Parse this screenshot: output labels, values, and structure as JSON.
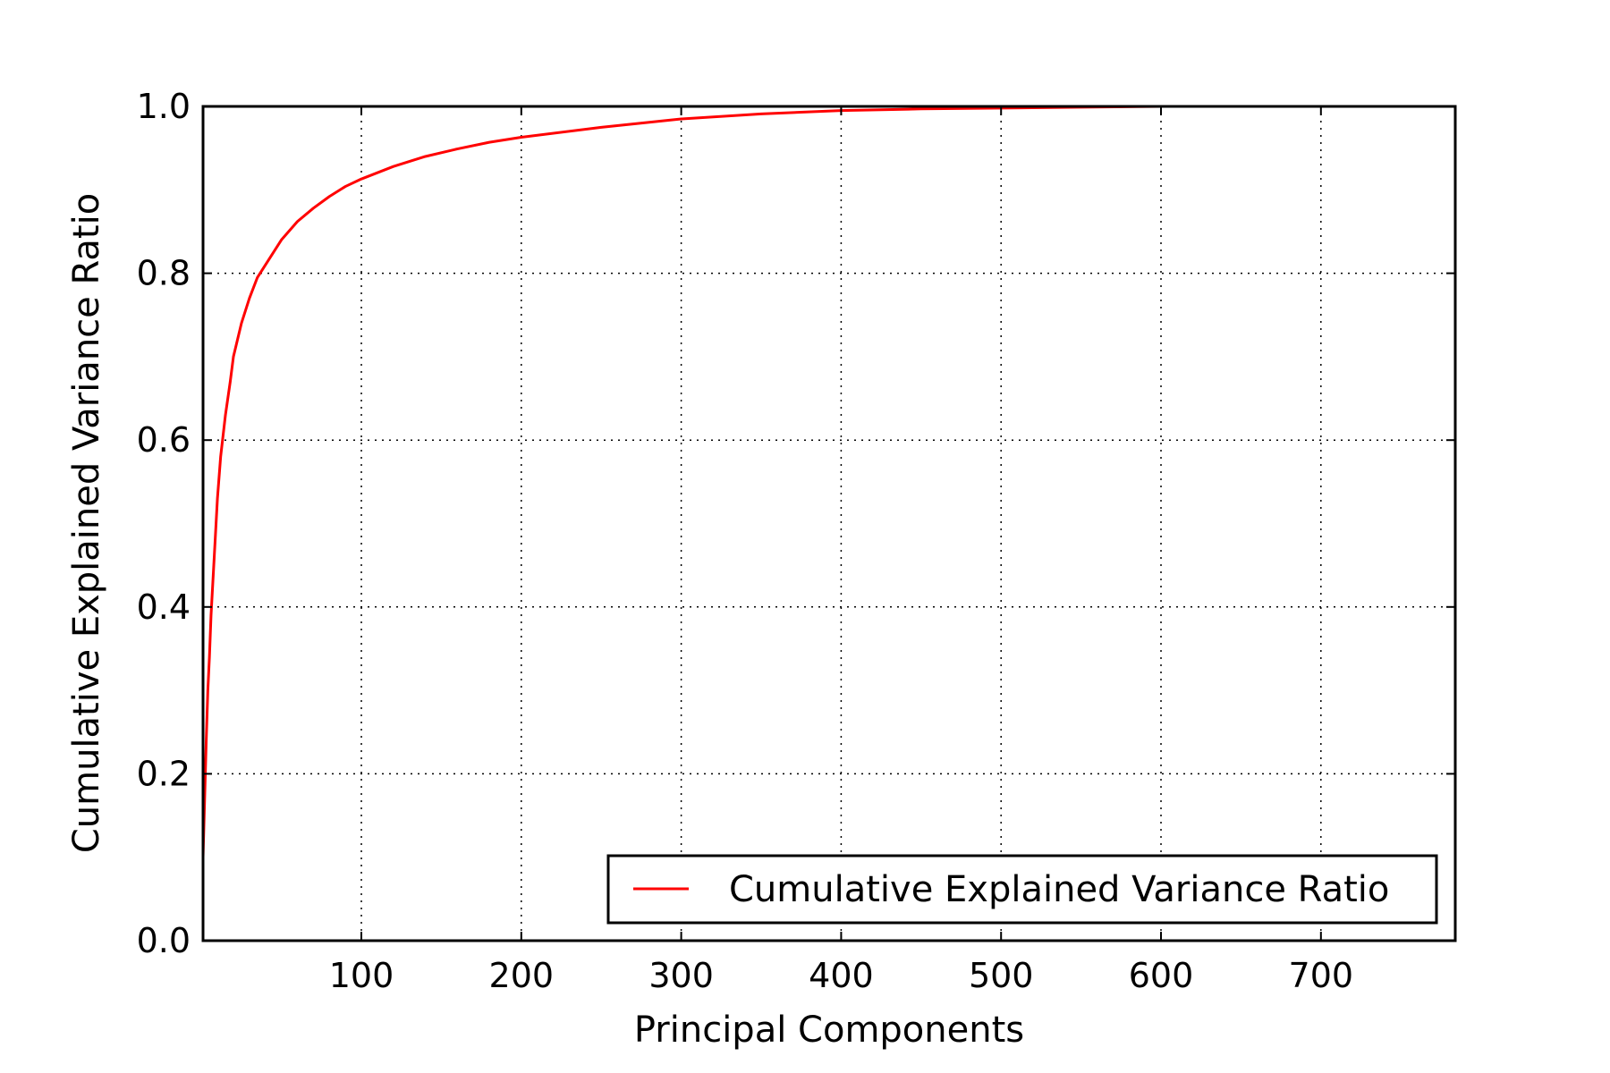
{
  "chart_data": {
    "type": "line",
    "title": "",
    "xlabel": "Principal Components",
    "ylabel": "Cumulative Explained Variance Ratio",
    "xlim": [
      1,
      784
    ],
    "ylim": [
      0.0,
      1.0
    ],
    "x_ticks": [
      100,
      200,
      300,
      400,
      500,
      600,
      700
    ],
    "x_tick_labels": [
      "100",
      "200",
      "300",
      "400",
      "500",
      "600",
      "700"
    ],
    "y_ticks": [
      0.0,
      0.2,
      0.4,
      0.6,
      0.8,
      1.0
    ],
    "y_tick_labels": [
      "0.0",
      "0.2",
      "0.4",
      "0.6",
      "0.8",
      "1.0"
    ],
    "grid": true,
    "legend_position": "lower-right",
    "series": [
      {
        "name": "Cumulative Explained Variance Ratio",
        "color": "#ff0000",
        "x": [
          1,
          2,
          3,
          4,
          5,
          6,
          8,
          10,
          12,
          15,
          18,
          20,
          25,
          30,
          35,
          40,
          45,
          50,
          60,
          70,
          80,
          90,
          100,
          120,
          140,
          160,
          180,
          200,
          250,
          300,
          350,
          400,
          450,
          500,
          550,
          600,
          650,
          700,
          750,
          784
        ],
        "y": [
          0.1,
          0.17,
          0.24,
          0.3,
          0.34,
          0.39,
          0.46,
          0.53,
          0.58,
          0.63,
          0.67,
          0.7,
          0.74,
          0.77,
          0.795,
          0.81,
          0.825,
          0.84,
          0.862,
          0.878,
          0.892,
          0.904,
          0.913,
          0.928,
          0.94,
          0.949,
          0.957,
          0.963,
          0.975,
          0.985,
          0.991,
          0.995,
          0.997,
          0.998,
          0.999,
          1.0,
          1.0,
          1.0,
          1.0,
          1.0
        ]
      }
    ]
  },
  "colors": {
    "line": "#ff0000",
    "axes": "#000000",
    "grid": "#000000",
    "background": "#ffffff"
  }
}
